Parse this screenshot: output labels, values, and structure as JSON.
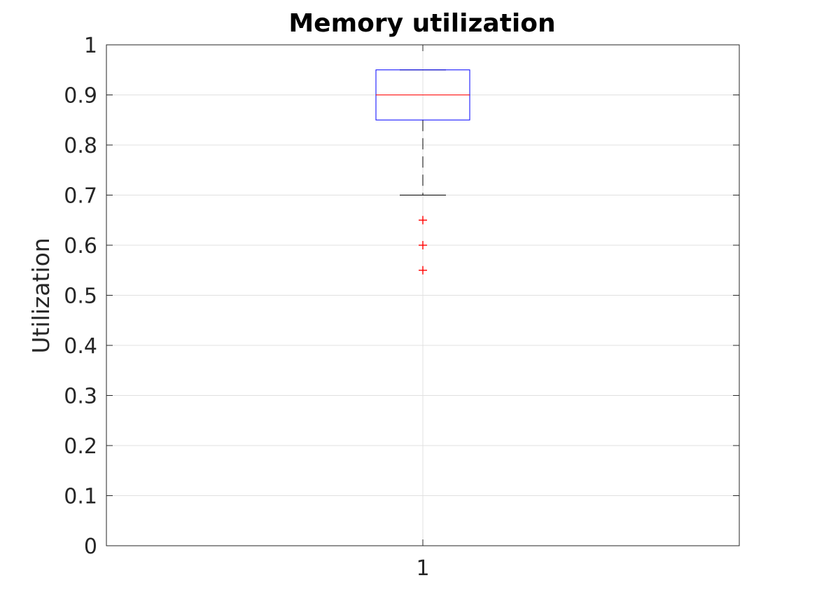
{
  "chart_data": {
    "type": "box",
    "title": "Memory utilization",
    "xlabel": "",
    "ylabel": "Utilization",
    "categories": [
      "1"
    ],
    "ylim": [
      0,
      1
    ],
    "yticks": [
      "0",
      "0.1",
      "0.2",
      "0.3",
      "0.4",
      "0.5",
      "0.6",
      "0.7",
      "0.8",
      "0.9",
      "1"
    ],
    "grid": true,
    "boxes": [
      {
        "category": "1",
        "whisker_low": 0.7,
        "q1": 0.85,
        "median": 0.9,
        "q3": 0.95,
        "whisker_high": 0.95,
        "outliers": [
          0.65,
          0.6,
          0.55
        ]
      }
    ]
  },
  "colors": {
    "box": "#0000ff",
    "median": "#ff0000",
    "whisker": "#000000",
    "outlier": "#ff0000",
    "grid": "#e0e0e0",
    "axes": "#262626"
  }
}
